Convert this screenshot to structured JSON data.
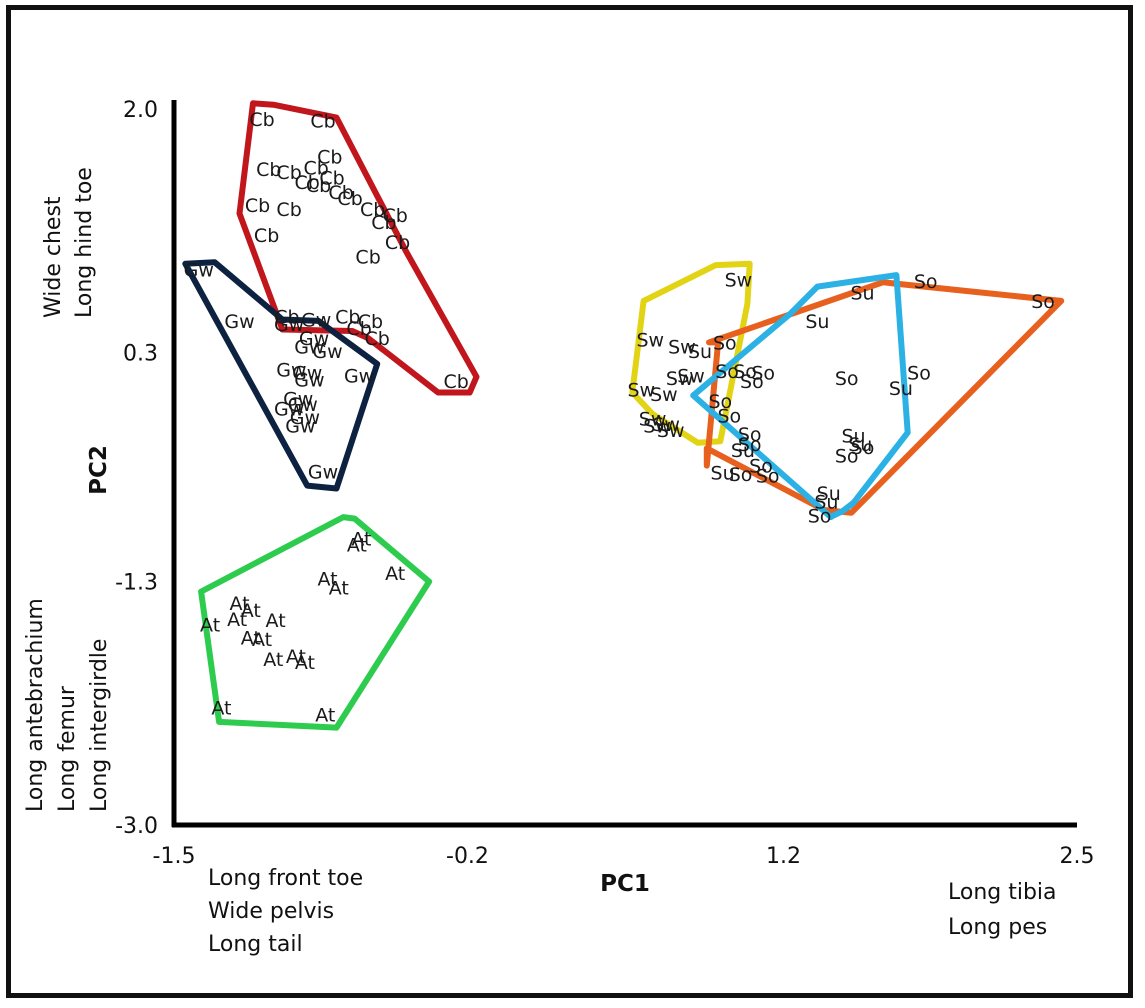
{
  "chart_data": {
    "type": "scatter",
    "xlabel": "PC1",
    "ylabel": "PC2",
    "xlim": [
      -1.5,
      2.5
    ],
    "ylim": [
      -3.0,
      2.0
    ],
    "x_ticks": [
      "-1.5",
      "-0.2",
      "1.2",
      "2.5"
    ],
    "y_ticks": [
      "2.0",
      "0.3",
      "-1.3",
      "-3.0"
    ],
    "x_tick_values": [
      -1.5,
      -0.2,
      1.2,
      2.5
    ],
    "y_tick_values": [
      2.0,
      0.3,
      -1.3,
      -3.0
    ],
    "annotations": {
      "x_low": [
        "Long front toe",
        "Wide pelvis",
        "Long tail"
      ],
      "x_high": [
        "Long tibia",
        "Long pes"
      ],
      "y_high": [
        "Wide chest",
        "Long hind toe"
      ],
      "y_low": [
        "Long antebrachium",
        "Long femur",
        "Long intergirdle"
      ]
    },
    "groups": [
      {
        "label": "Cb",
        "color": "#c0161c",
        "hull": [
          [
            -1.15,
            2.04
          ],
          [
            -1.06,
            2.03
          ],
          [
            -0.78,
            1.94
          ],
          [
            -0.47,
            1.0
          ],
          [
            -0.16,
            0.13
          ],
          [
            -0.19,
            0.02
          ],
          [
            -0.33,
            0.02
          ],
          [
            -0.64,
            0.4
          ],
          [
            -0.71,
            0.45
          ],
          [
            -1.02,
            0.46
          ],
          [
            -1.21,
            1.27
          ]
        ],
        "points": [
          [
            -1.11,
            1.93
          ],
          [
            -0.84,
            1.92
          ],
          [
            -0.81,
            1.67
          ],
          [
            -1.08,
            1.58
          ],
          [
            -0.99,
            1.56
          ],
          [
            -0.87,
            1.59
          ],
          [
            -0.8,
            1.52
          ],
          [
            -0.91,
            1.49
          ],
          [
            -0.86,
            1.47
          ],
          [
            -0.76,
            1.42
          ],
          [
            -0.72,
            1.38
          ],
          [
            -0.62,
            1.3
          ],
          [
            -0.52,
            1.26
          ],
          [
            -0.57,
            1.21
          ],
          [
            -1.13,
            1.33
          ],
          [
            -0.99,
            1.3
          ],
          [
            -1.09,
            1.12
          ],
          [
            -0.64,
            0.97
          ],
          [
            -0.51,
            1.07
          ],
          [
            -1.0,
            0.55
          ],
          [
            -0.68,
            0.47
          ],
          [
            -0.73,
            0.55
          ],
          [
            -0.63,
            0.52
          ],
          [
            -0.6,
            0.4
          ],
          [
            -0.25,
            0.1
          ]
        ]
      },
      {
        "label": "Gw",
        "color": "#0d2240",
        "hull": [
          [
            -1.45,
            0.92
          ],
          [
            -1.32,
            0.93
          ],
          [
            -1.02,
            0.53
          ],
          [
            -0.86,
            0.52
          ],
          [
            -0.6,
            0.22
          ],
          [
            -0.78,
            -0.65
          ],
          [
            -0.91,
            -0.63
          ],
          [
            -1.45,
            0.92
          ]
        ],
        "points": [
          [
            -1.39,
            0.88
          ],
          [
            -1.21,
            0.52
          ],
          [
            -0.99,
            0.5
          ],
          [
            -0.87,
            0.53
          ],
          [
            -0.88,
            0.4
          ],
          [
            -0.9,
            0.34
          ],
          [
            -0.82,
            0.31
          ],
          [
            -0.98,
            0.18
          ],
          [
            -0.91,
            0.16
          ],
          [
            -0.9,
            0.11
          ],
          [
            -0.68,
            0.14
          ],
          [
            -0.95,
            -0.02
          ],
          [
            -0.93,
            -0.06
          ],
          [
            -0.99,
            -0.09
          ],
          [
            -0.92,
            -0.15
          ],
          [
            -0.94,
            -0.21
          ],
          [
            -0.84,
            -0.53
          ]
        ]
      },
      {
        "label": "At",
        "color": "#2ecc4e",
        "hull": [
          [
            -1.38,
            -1.37
          ],
          [
            -0.75,
            -0.85
          ],
          [
            -0.7,
            -0.86
          ],
          [
            -0.37,
            -1.3
          ],
          [
            -0.78,
            -2.32
          ],
          [
            -1.3,
            -2.28
          ]
        ],
        "points": [
          [
            -0.67,
            -1.0
          ],
          [
            -0.69,
            -1.04
          ],
          [
            -0.52,
            -1.24
          ],
          [
            -0.82,
            -1.28
          ],
          [
            -0.77,
            -1.34
          ],
          [
            -1.21,
            -1.45
          ],
          [
            -1.16,
            -1.5
          ],
          [
            -1.22,
            -1.56
          ],
          [
            -1.34,
            -1.6
          ],
          [
            -1.05,
            -1.57
          ],
          [
            -1.16,
            -1.69
          ],
          [
            -1.11,
            -1.7
          ],
          [
            -1.06,
            -1.84
          ],
          [
            -0.96,
            -1.82
          ],
          [
            -0.92,
            -1.86
          ],
          [
            -1.29,
            -2.18
          ],
          [
            -0.83,
            -2.23
          ]
        ]
      },
      {
        "label": "Sw",
        "color": "#e2d414",
        "hull": [
          [
            0.58,
            0.66
          ],
          [
            0.9,
            0.91
          ],
          [
            1.05,
            0.92
          ],
          [
            1.04,
            0.64
          ],
          [
            0.92,
            -0.32
          ],
          [
            0.82,
            -0.33
          ],
          [
            0.62,
            -0.13
          ],
          [
            0.53,
            0.02
          ]
        ],
        "points": [
          [
            1.0,
            0.81
          ],
          [
            0.61,
            0.39
          ],
          [
            0.75,
            0.34
          ],
          [
            0.79,
            0.14
          ],
          [
            0.74,
            0.12
          ],
          [
            0.57,
            0.04
          ],
          [
            0.67,
            0.01
          ],
          [
            0.62,
            -0.16
          ],
          [
            0.7,
            -0.24
          ],
          [
            0.64,
            -0.21
          ],
          [
            0.68,
            -0.2
          ]
        ]
      },
      {
        "label": "Su",
        "color": "#e8601e",
        "hull": [
          [
            0.87,
            0.37
          ],
          [
            1.64,
            0.79
          ],
          [
            2.43,
            0.66
          ],
          [
            1.5,
            -0.82
          ],
          [
            1.38,
            -0.8
          ],
          [
            0.86,
            -0.37
          ],
          [
            0.86,
            -0.49
          ],
          [
            0.91,
            0.37
          ]
        ],
        "points": [
          [
            1.55,
            0.72
          ],
          [
            1.35,
            0.52
          ],
          [
            1.72,
            0.05
          ],
          [
            1.51,
            -0.28
          ],
          [
            1.54,
            -0.34
          ],
          [
            1.02,
            -0.38
          ],
          [
            0.83,
            0.31
          ],
          [
            0.93,
            -0.54
          ],
          [
            1.39,
            -0.74
          ],
          [
            1.4,
            -0.68
          ]
        ]
      },
      {
        "label": "So",
        "color": "#2bb1e3",
        "hull": [
          [
            0.8,
            0.0
          ],
          [
            1.23,
            0.57
          ],
          [
            1.35,
            0.76
          ],
          [
            1.7,
            0.84
          ],
          [
            1.75,
            -0.26
          ],
          [
            1.51,
            -0.75
          ],
          [
            1.46,
            -0.81
          ],
          [
            1.42,
            -0.84
          ],
          [
            1.41,
            -0.85
          ],
          [
            0.8,
            0.0
          ]
        ],
        "points": [
          [
            1.83,
            0.8
          ],
          [
            2.35,
            0.66
          ],
          [
            0.94,
            0.37
          ],
          [
            0.95,
            0.17
          ],
          [
            1.03,
            0.17
          ],
          [
            1.11,
            0.16
          ],
          [
            1.06,
            0.1
          ],
          [
            1.48,
            0.12
          ],
          [
            1.8,
            0.16
          ],
          [
            0.92,
            -0.04
          ],
          [
            0.96,
            -0.14
          ],
          [
            1.05,
            -0.27
          ],
          [
            1.05,
            -0.34
          ],
          [
            1.1,
            -0.49
          ],
          [
            1.01,
            -0.55
          ],
          [
            1.13,
            -0.56
          ],
          [
            1.48,
            -0.42
          ],
          [
            1.55,
            -0.36
          ],
          [
            1.36,
            -0.84
          ]
        ]
      }
    ]
  }
}
